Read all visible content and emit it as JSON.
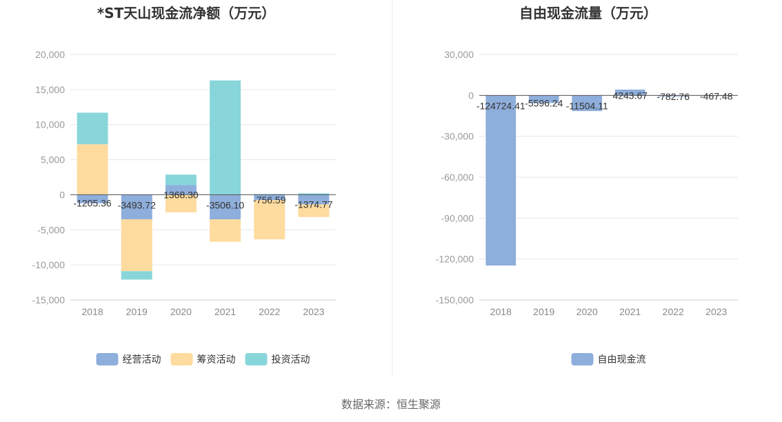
{
  "source": "数据来源：恒生聚源",
  "chart_data": [
    {
      "type": "bar",
      "stacked": true,
      "title": "*ST天山现金流净额（万元）",
      "categories": [
        "2018",
        "2019",
        "2020",
        "2021",
        "2022",
        "2023"
      ],
      "ylim": [
        -15000,
        20000
      ],
      "yticks": [
        20000,
        15000,
        10000,
        5000,
        0,
        -5000,
        -10000,
        -15000
      ],
      "ytick_labels": [
        "20,000",
        "15,000",
        "10,000",
        "5,000",
        "0",
        "-5,000",
        "-10,000",
        "-15,000"
      ],
      "grid": true,
      "legend_position": "bottom",
      "series": [
        {
          "name": "经营活动",
          "color": "#8eaedb",
          "values": [
            -1205.36,
            -3493.72,
            1368.3,
            -3506.1,
            -756.59,
            -1374.77
          ]
        },
        {
          "name": "筹资活动",
          "color": "#fedb9e",
          "values": [
            7200,
            -7400,
            -2500,
            -3200,
            -5600,
            -1800
          ]
        },
        {
          "name": "投资活动",
          "color": "#88d6da",
          "values": [
            4500,
            -1200,
            1500,
            16300,
            100,
            200
          ]
        }
      ],
      "data_labels": [
        "-1205.36",
        "-3493.72",
        "1368.30",
        "-3506.10",
        "-756.59",
        "-1374.77"
      ]
    },
    {
      "type": "bar",
      "title": "自由现金流量（万元）",
      "categories": [
        "2018",
        "2019",
        "2020",
        "2021",
        "2022",
        "2023"
      ],
      "ylim": [
        -150000,
        30000
      ],
      "yticks": [
        30000,
        0,
        -30000,
        -60000,
        -90000,
        -120000,
        -150000
      ],
      "ytick_labels": [
        "30,000",
        "0",
        "-30,000",
        "-60,000",
        "-90,000",
        "-120,000",
        "-150,000"
      ],
      "grid": true,
      "legend_position": "bottom",
      "series": [
        {
          "name": "自由现金流",
          "color": "#8eaedb",
          "values": [
            -124724.41,
            -5596.24,
            -11504.11,
            4243.67,
            -782.76,
            -467.48
          ]
        }
      ],
      "data_labels": [
        "-124724.41",
        "-5596.24",
        "-11504.11",
        "4243.67",
        "-782.76",
        "-467.48"
      ]
    }
  ]
}
